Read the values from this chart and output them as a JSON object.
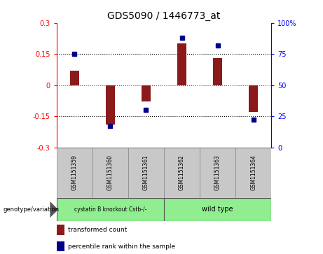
{
  "title": "GDS5090 / 1446773_at",
  "samples": [
    "GSM1151359",
    "GSM1151360",
    "GSM1151361",
    "GSM1151362",
    "GSM1151363",
    "GSM1151364"
  ],
  "bar_values": [
    0.07,
    -0.19,
    -0.08,
    0.2,
    0.13,
    -0.13
  ],
  "percentile_values": [
    75,
    17,
    30,
    88,
    82,
    22
  ],
  "bar_color": "#8B1A1A",
  "dot_color": "#00008B",
  "ylim_left": [
    -0.3,
    0.3
  ],
  "ylim_right": [
    0,
    100
  ],
  "yticks_left": [
    -0.3,
    -0.15,
    0,
    0.15,
    0.3
  ],
  "yticks_right": [
    0,
    25,
    50,
    75,
    100
  ],
  "group1_label": "cystatin B knockout Cstb-/-",
  "group2_label": "wild type",
  "group1_color": "#90EE90",
  "group2_color": "#90EE90",
  "genotype_label": "genotype/variation",
  "legend1_label": "transformed count",
  "legend2_label": "percentile rank within the sample",
  "bar_width": 0.25,
  "background_color": "#ffffff",
  "plot_bg": "#ffffff",
  "tick_label_fontsize": 7,
  "title_fontsize": 10,
  "sample_box_color": "#C8C8C8"
}
